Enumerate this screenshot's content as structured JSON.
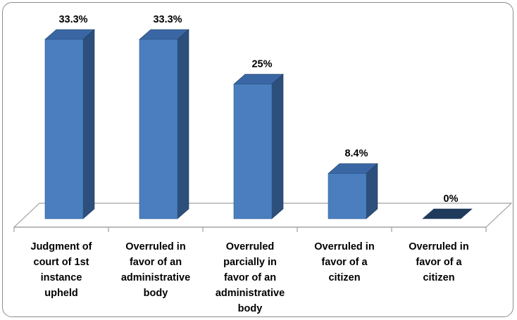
{
  "chart_data": {
    "type": "bar",
    "categories": [
      [
        "Judgment of",
        "court of 1st",
        "instance",
        "upheld"
      ],
      [
        "Overruled in",
        "favor of an",
        "administrative",
        "body"
      ],
      [
        "Overruled",
        "parcially in",
        "favor of an",
        "administrative",
        "body"
      ],
      [
        "Overruled in",
        "favor of a",
        "citizen"
      ],
      [
        "Overruled in",
        "favor of a",
        "citizen"
      ]
    ],
    "values": [
      33.3,
      33.3,
      25,
      8.4,
      0
    ],
    "value_labels": [
      "33.3%",
      "33.3%",
      "25%",
      "8.4%",
      "0%"
    ],
    "ylim": [
      0,
      35
    ],
    "grid": false,
    "legend": "none",
    "style": "3d-column",
    "colors": {
      "front": "#4a7ebf",
      "side": "#2d4f7c",
      "top": "#3a67a4",
      "floor": "#ffffff",
      "floor_edge": "#a0a0a0"
    }
  }
}
